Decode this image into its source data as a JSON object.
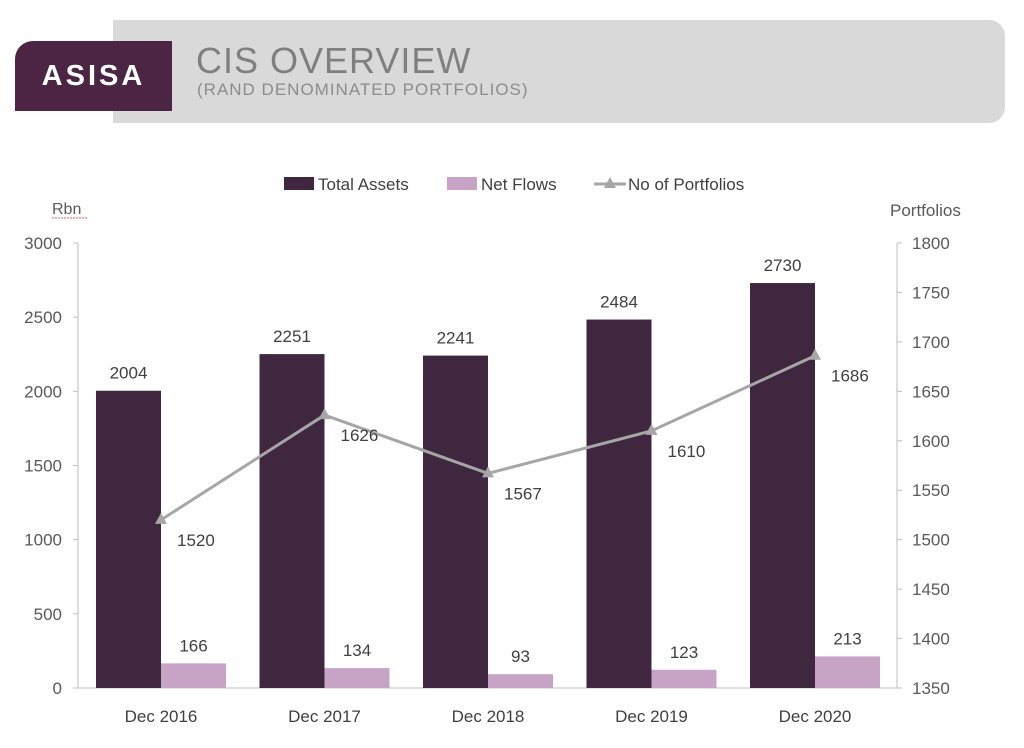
{
  "header": {
    "logo": "ASISA",
    "title": "CIS OVERVIEW",
    "subtitle": "(RAND DENOMINATED PORTFOLIOS)"
  },
  "chart_data": {
    "type": "bar",
    "categories": [
      "Dec 2016",
      "Dec 2017",
      "Dec 2018",
      "Dec 2019",
      "Dec 2020"
    ],
    "series": [
      {
        "name": "Total Assets",
        "type": "bar",
        "axis": "left",
        "color": "#3f2740",
        "values": [
          2004,
          2251,
          2241,
          2484,
          2730
        ]
      },
      {
        "name": "Net Flows",
        "type": "bar",
        "axis": "left",
        "color": "#c7a3c6",
        "values": [
          166,
          134,
          93,
          123,
          213
        ]
      },
      {
        "name": "No of Portfolios",
        "type": "line",
        "axis": "right",
        "color": "#a6a6a6",
        "values": [
          1520,
          1626,
          1567,
          1610,
          1686
        ]
      }
    ],
    "ylabel": "Rbn",
    "ylim": [
      0,
      3000
    ],
    "yticks": [
      0,
      500,
      1000,
      1500,
      2000,
      2500,
      3000
    ],
    "y2label": "Portfolios",
    "y2lim": [
      1350,
      1800
    ],
    "y2ticks": [
      1350,
      1400,
      1450,
      1500,
      1550,
      1600,
      1650,
      1700,
      1750,
      1800
    ],
    "legend": "top-center",
    "grid": false
  }
}
